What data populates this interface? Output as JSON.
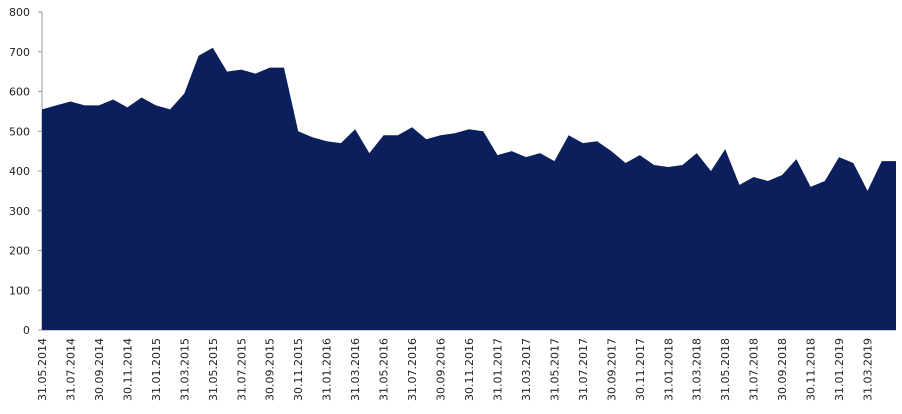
{
  "chart_data": {
    "type": "area",
    "color": "#0a1f5c",
    "categories": [
      "31.05.2014",
      null,
      "31.07.2014",
      null,
      "30.09.2014",
      null,
      "30.11.2014",
      null,
      "31.01.2015",
      null,
      "31.03.2015",
      null,
      "31.05.2015",
      null,
      "31.07.2015",
      null,
      "30.09.2015",
      null,
      "30.11.2015",
      null,
      "31.01.2016",
      null,
      "31.03.2016",
      null,
      "31.05.2016",
      null,
      "31.07.2016",
      null,
      "30.09.2016",
      null,
      "30.11.2016",
      null,
      "31.01.2017",
      null,
      "31.03.2017",
      null,
      "31.05.2017",
      null,
      "31.07.2017",
      null,
      "30.09.2017",
      null,
      "30.11.2017",
      null,
      "31.01.2018",
      null,
      "31.03.2018",
      null,
      "31.05.2018",
      null,
      "31.07.2018",
      null,
      "30.09.2018",
      null,
      "30.11.2018",
      null,
      "31.01.2019",
      null,
      "31.03.2019",
      null,
      null
    ],
    "values": [
      555,
      565,
      575,
      565,
      565,
      580,
      560,
      585,
      565,
      555,
      595,
      690,
      710,
      650,
      655,
      645,
      660,
      660,
      500,
      485,
      475,
      470,
      505,
      445,
      490,
      490,
      510,
      480,
      490,
      495,
      505,
      500,
      440,
      450,
      435,
      445,
      425,
      490,
      470,
      475,
      450,
      420,
      440,
      415,
      410,
      415,
      445,
      400,
      455,
      365,
      385,
      375,
      390,
      430,
      360,
      375,
      435,
      420,
      350,
      425,
      425
    ],
    "ylim": [
      0,
      800
    ],
    "yticks": [
      0,
      100,
      200,
      300,
      400,
      500,
      600,
      700,
      800
    ]
  }
}
